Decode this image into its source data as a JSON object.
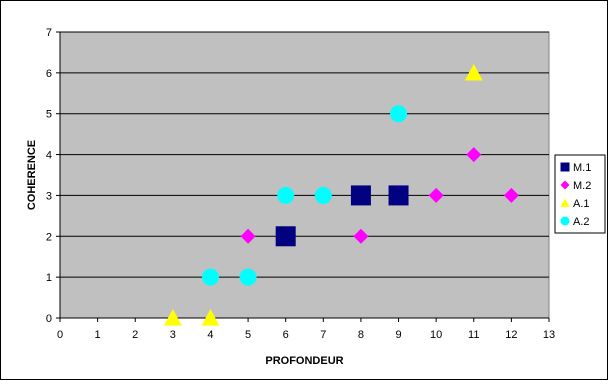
{
  "chart_data": {
    "type": "scatter",
    "xlabel": "PROFONDEUR",
    "ylabel": "COHERENCE",
    "xlim": [
      0,
      13
    ],
    "ylim": [
      0,
      7
    ],
    "xticks": [
      0,
      1,
      2,
      3,
      4,
      5,
      6,
      7,
      8,
      9,
      10,
      11,
      12,
      13
    ],
    "yticks": [
      0,
      1,
      2,
      3,
      4,
      5,
      6,
      7
    ],
    "grid": "horizontal",
    "plot_background": "#C0C0C0",
    "legend_position": "right",
    "series": [
      {
        "name": "M.1",
        "marker": "square",
        "color": "#000080",
        "points": [
          [
            6,
            2
          ],
          [
            8,
            3
          ],
          [
            9,
            3
          ]
        ]
      },
      {
        "name": "M.2",
        "marker": "diamond",
        "color": "#FF00FF",
        "points": [
          [
            5,
            2
          ],
          [
            8,
            2
          ],
          [
            10,
            3
          ],
          [
            11,
            4
          ],
          [
            12,
            3
          ]
        ]
      },
      {
        "name": "A.1",
        "marker": "triangle",
        "color": "#FFFF00",
        "points": [
          [
            3,
            0
          ],
          [
            4,
            0
          ],
          [
            11,
            6
          ]
        ]
      },
      {
        "name": "A.2",
        "marker": "circle",
        "color": "#00FFFF",
        "points": [
          [
            4,
            1
          ],
          [
            5,
            1
          ],
          [
            6,
            3
          ],
          [
            7,
            3
          ],
          [
            9,
            5
          ]
        ]
      }
    ]
  }
}
